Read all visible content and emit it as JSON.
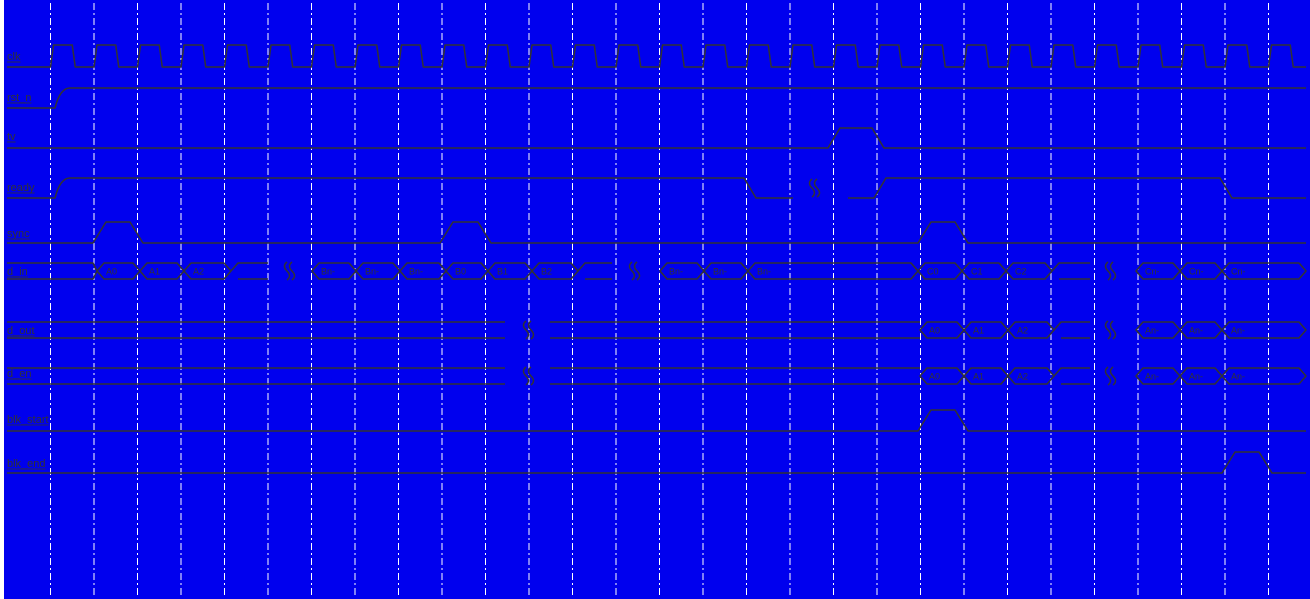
{
  "diagram": {
    "type": "timing-diagram",
    "colors": {
      "background": "#0000ee",
      "trace": "#333333",
      "label_text": "#333333",
      "gridline": "#ffffff"
    },
    "signals": [
      {
        "key": "clk",
        "label": "clk"
      },
      {
        "key": "rst_n",
        "label": "rst_n"
      },
      {
        "key": "tv",
        "label": "tv"
      },
      {
        "key": "ready",
        "label": "ready"
      },
      {
        "key": "sync",
        "label": "sync"
      },
      {
        "key": "d_in",
        "label": "d_in",
        "cells": [
          "A0",
          "A1",
          "A2",
          "Bn-",
          "Bn-",
          "Bn-",
          "B0",
          "B1",
          "B2",
          "Bn-",
          "Bn-",
          "Bn-",
          "C0",
          "C1",
          "C2",
          "Cn-",
          "Cn-",
          "Cn-"
        ]
      },
      {
        "key": "d_out",
        "label": "d_out",
        "cells": [
          "A0",
          "A1",
          "A2",
          "An-",
          "An-",
          "An-"
        ]
      },
      {
        "key": "d_en",
        "label": "d_en",
        "cells": [
          "A0",
          "A1",
          "A2",
          "An-",
          "An-",
          "An-"
        ]
      },
      {
        "key": "blk_start",
        "label": "blk_start"
      },
      {
        "key": "blk_end",
        "label": "blk_end"
      }
    ]
  }
}
